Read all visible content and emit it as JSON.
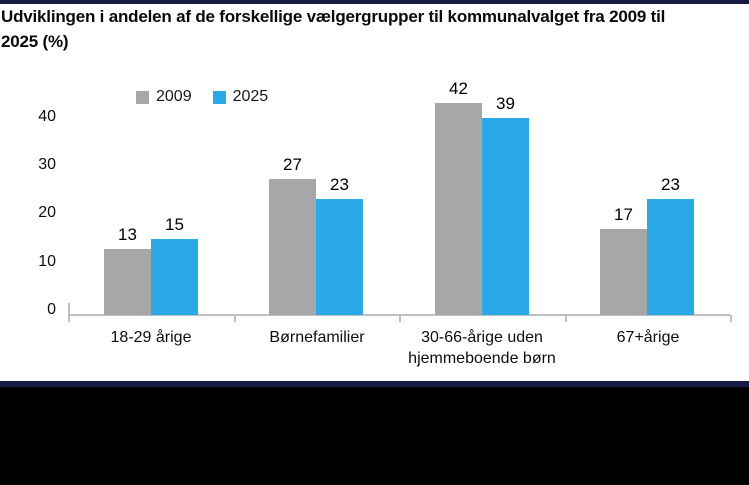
{
  "title": "Udviklingen i andelen af de forskellige vælgergrupper til kommunalvalget fra 2009 til 2025 (%)",
  "legend": {
    "items": [
      {
        "label": "2009",
        "color": "#A7A7A7"
      },
      {
        "label": "2025",
        "color": "#2BA9E6"
      }
    ]
  },
  "chart_data": {
    "type": "bar",
    "title": "Udviklingen i andelen af de forskellige vælgergrupper til kommunalvalget fra 2009 til 2025 (%)",
    "categories": [
      "18-29 årige",
      "Børnefamilier",
      "30-66-årige uden hjemmeboende børn",
      "67+årige"
    ],
    "series": [
      {
        "name": "2009",
        "color": "#A7A7A7",
        "values": [
          13,
          27,
          42,
          17
        ]
      },
      {
        "name": "2025",
        "color": "#2BA9E6",
        "values": [
          15,
          23,
          39,
          23
        ]
      }
    ],
    "xlabel": "",
    "ylabel": "",
    "yticks": [
      0,
      10,
      20,
      30,
      40
    ],
    "ylim": [
      0,
      45
    ],
    "grid": false,
    "legend_position": "top-inside-left",
    "value_labels": true
  },
  "colors": {
    "rule": "#161C46",
    "footer_band": "#000000",
    "axis_line": "#BFBFBF",
    "bar_2009": "#A7A7A7",
    "bar_2025": "#2BA9E6"
  }
}
